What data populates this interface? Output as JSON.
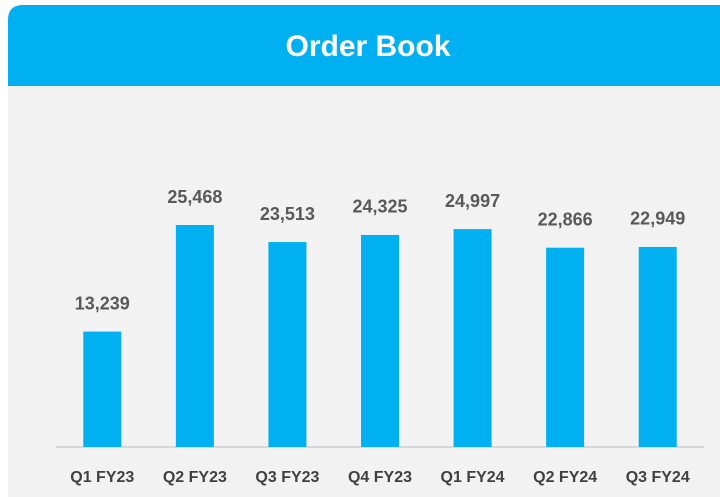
{
  "chart_data": {
    "type": "bar",
    "title": "Order Book",
    "categories": [
      "Q1 FY23",
      "Q2 FY23",
      "Q3 FY23",
      "Q4 FY23",
      "Q1 FY24",
      "Q2 FY24",
      "Q3 FY24"
    ],
    "values": [
      13239,
      25468,
      23513,
      24325,
      24997,
      22866,
      22949
    ],
    "value_labels": [
      "13,239",
      "25,468",
      "23,513",
      "24,325",
      "24,997",
      "22,866",
      "22,949"
    ],
    "color": "#00b0f0",
    "ylim": [
      0,
      30000
    ]
  }
}
